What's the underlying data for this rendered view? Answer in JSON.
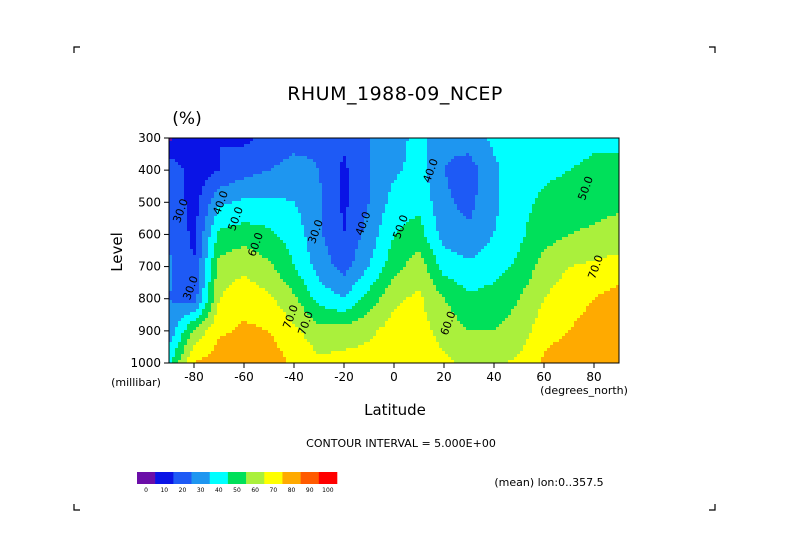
{
  "chart_data": {
    "type": "heatmap",
    "title": "RHUM_1988-09_NCEP",
    "units": "(%)",
    "xlabel": "Latitude",
    "x_unit": "(degrees_north)",
    "ylabel": "Level",
    "y_unit": "(millibar)",
    "xlim": [
      -90,
      90
    ],
    "ylim": [
      1000,
      300
    ],
    "x_ticks": [
      -80,
      -60,
      -40,
      -20,
      0,
      20,
      40,
      60,
      80
    ],
    "x_tick_labels": [
      "-80",
      "-60",
      "-40",
      "-20",
      "0",
      "20",
      "40",
      "60",
      "80"
    ],
    "y_ticks": [
      300,
      400,
      500,
      600,
      700,
      800,
      900,
      1000
    ],
    "y_tick_labels": [
      "300",
      "400",
      "500",
      "600",
      "700",
      "800",
      "900",
      "1000"
    ],
    "contour_interval_text": "CONTOUR INTERVAL = 5.000E+00",
    "mean_text": "(mean) lon:0..357.5",
    "color_levels": [
      0,
      10,
      20,
      30,
      40,
      50,
      60,
      70,
      80,
      90,
      100
    ],
    "color_level_labels": [
      "0",
      "10",
      "20",
      "30",
      "40",
      "50",
      "60",
      "70",
      "80",
      "90",
      "100"
    ],
    "colors": [
      "#6b0ea8",
      "#0a14e6",
      "#1e5af5",
      "#1e96f0",
      "#00ffff",
      "#00e05a",
      "#aaf03c",
      "#ffff00",
      "#ffaa00",
      "#ff5a00",
      "#ff0000"
    ],
    "latitudes": [
      -90,
      -80,
      -70,
      -60,
      -50,
      -40,
      -30,
      -20,
      -10,
      0,
      10,
      20,
      30,
      40,
      50,
      60,
      70,
      80,
      90
    ],
    "levels": [
      300,
      400,
      500,
      600,
      700,
      800,
      900,
      1000
    ],
    "values": [
      [
        8,
        15,
        20,
        18,
        22,
        26,
        28,
        22,
        30,
        35,
        44,
        32,
        35,
        42,
        45,
        45,
        46,
        48,
        48
      ],
      [
        28,
        14,
        20,
        26,
        30,
        34,
        30,
        18,
        30,
        38,
        44,
        30,
        25,
        38,
        46,
        48,
        50,
        52,
        52
      ],
      [
        30,
        15,
        38,
        42,
        42,
        40,
        32,
        18,
        30,
        44,
        48,
        32,
        27,
        38,
        47,
        52,
        54,
        56,
        58
      ],
      [
        28,
        18,
        52,
        55,
        52,
        46,
        32,
        20,
        34,
        50,
        54,
        36,
        32,
        40,
        48,
        56,
        60,
        62,
        64
      ],
      [
        32,
        20,
        64,
        68,
        62,
        50,
        36,
        26,
        40,
        56,
        66,
        46,
        42,
        46,
        52,
        64,
        70,
        72,
        74
      ],
      [
        30,
        24,
        70,
        76,
        72,
        62,
        46,
        40,
        54,
        68,
        72,
        60,
        52,
        54,
        60,
        70,
        76,
        80,
        84
      ],
      [
        32,
        62,
        78,
        82,
        80,
        72,
        64,
        64,
        68,
        74,
        74,
        66,
        60,
        60,
        64,
        76,
        80,
        84,
        88
      ],
      [
        48,
        80,
        86,
        88,
        86,
        78,
        72,
        74,
        74,
        78,
        78,
        72,
        68,
        68,
        72,
        82,
        86,
        88,
        90
      ]
    ],
    "contour_labels": [
      {
        "text": "30.0",
        "lat": -84,
        "lev": 530
      },
      {
        "text": "30.0",
        "lat": -80,
        "lev": 770
      },
      {
        "text": "40.0",
        "lat": -68,
        "lev": 505
      },
      {
        "text": "50.0",
        "lat": -62,
        "lev": 555
      },
      {
        "text": "60.0",
        "lat": -54,
        "lev": 635
      },
      {
        "text": "70.0",
        "lat": -34,
        "lev": 880
      },
      {
        "text": "70.0",
        "lat": -40,
        "lev": 860
      },
      {
        "text": "30.0",
        "lat": -30,
        "lev": 595
      },
      {
        "text": "40.0",
        "lat": -11,
        "lev": 570
      },
      {
        "text": "50.0",
        "lat": 4,
        "lev": 580
      },
      {
        "text": "40.0",
        "lat": 16,
        "lev": 405
      },
      {
        "text": "60.0",
        "lat": 23,
        "lev": 880
      },
      {
        "text": "50.0",
        "lat": 78,
        "lev": 460
      },
      {
        "text": "70.0",
        "lat": 82,
        "lev": 705
      }
    ]
  }
}
